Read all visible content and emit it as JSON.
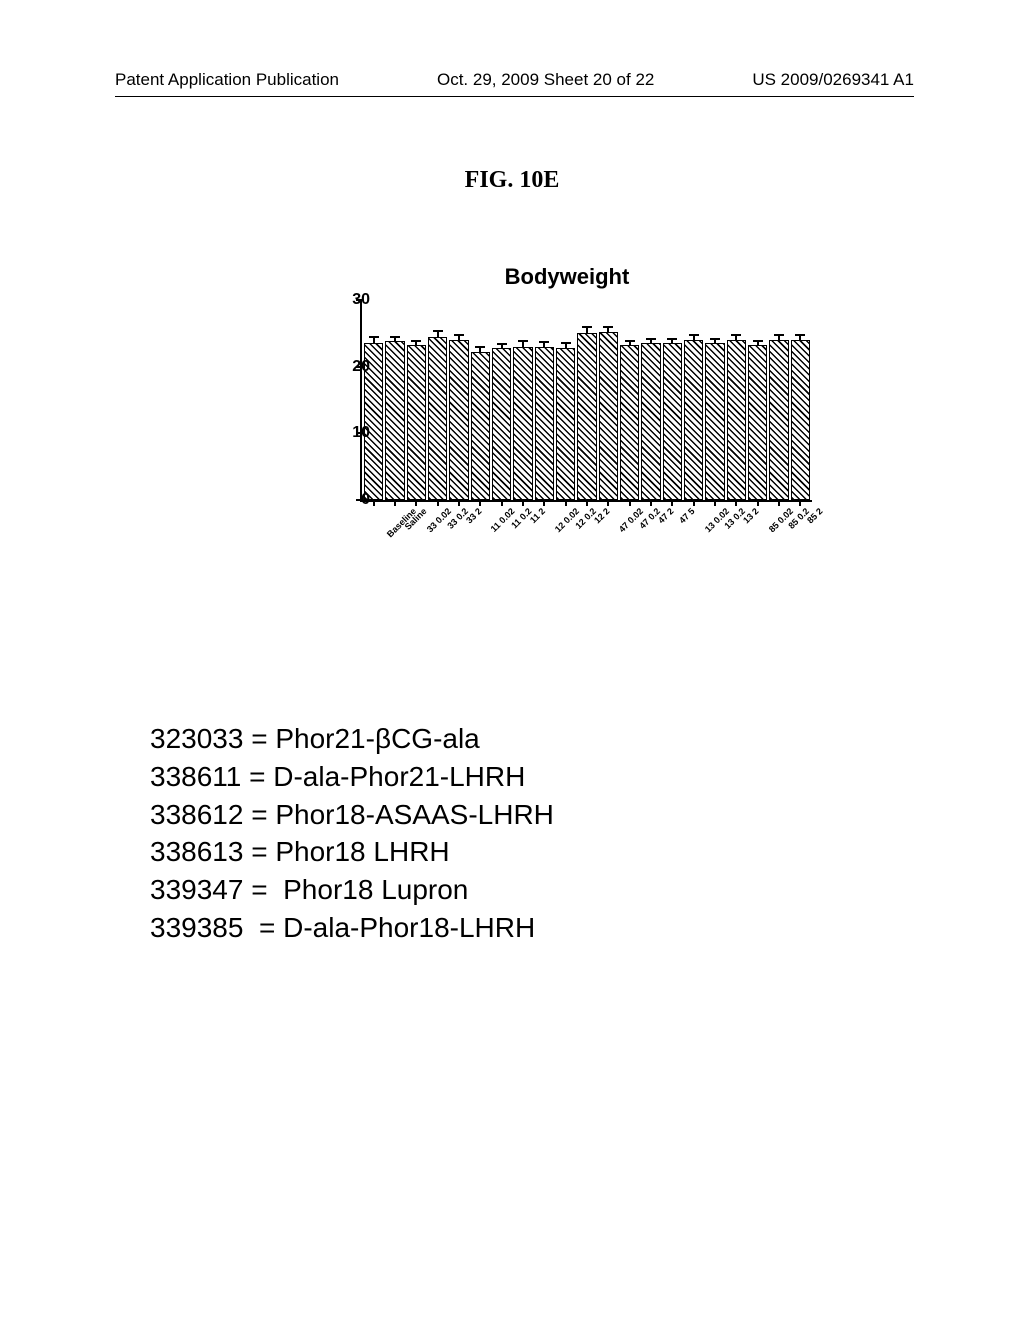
{
  "header": {
    "left": "Patent Application Publication",
    "center": "Oct. 29, 2009  Sheet 20 of 22",
    "right": "US 2009/0269341 A1"
  },
  "figure_label": "FIG. 10E",
  "chart": {
    "type": "bar",
    "title": "Bodyweight",
    "ylim": [
      0,
      30
    ],
    "ytick_step": 10,
    "bar_pattern": "diagonal-hatch",
    "background_color": "#ffffff",
    "axis_color": "#000000",
    "bars": [
      {
        "label": "Baseline",
        "value": 23.5,
        "err": 1.2
      },
      {
        "label": "Saline",
        "value": 23.8,
        "err": 1.0
      },
      {
        "label": "33 0.02",
        "value": 23.2,
        "err": 1.0
      },
      {
        "label": "33 0.2",
        "value": 24.5,
        "err": 1.2
      },
      {
        "label": "33 2",
        "value": 24.0,
        "err": 1.0
      },
      {
        "label": "11 0.02",
        "value": 22.2,
        "err": 1.0
      },
      {
        "label": "11 0.2",
        "value": 22.8,
        "err": 0.9
      },
      {
        "label": "11 2",
        "value": 23.0,
        "err": 1.1
      },
      {
        "label": "12 0.02",
        "value": 23.0,
        "err": 1.0
      },
      {
        "label": "12 0.2",
        "value": 22.8,
        "err": 1.0
      },
      {
        "label": "12 2",
        "value": 25.0,
        "err": 1.3
      },
      {
        "label": "47 0.02",
        "value": 25.2,
        "err": 1.1
      },
      {
        "label": "47 0.2",
        "value": 23.2,
        "err": 1.0
      },
      {
        "label": "47 2",
        "value": 23.5,
        "err": 1.0
      },
      {
        "label": "47 5",
        "value": 23.5,
        "err": 1.0
      },
      {
        "label": "13 0.02",
        "value": 24.0,
        "err": 1.0
      },
      {
        "label": "13 0.2",
        "value": 23.5,
        "err": 1.0
      },
      {
        "label": "13 2",
        "value": 24.0,
        "err": 1.0
      },
      {
        "label": "85 0.02",
        "value": 23.2,
        "err": 1.0
      },
      {
        "label": "85 0.2",
        "value": 24.0,
        "err": 1.0
      },
      {
        "label": "85 2",
        "value": 24.0,
        "err": 1.0
      }
    ]
  },
  "legend": [
    {
      "code": "323033",
      "desc": "Phor21-βCG-ala"
    },
    {
      "code": "338611",
      "desc": "D-ala-Phor21-LHRH"
    },
    {
      "code": "338612",
      "desc": "Phor18-ASAAS-LHRH"
    },
    {
      "code": "338613",
      "desc": "Phor18 LHRH"
    },
    {
      "code": "339347",
      "desc": " Phor18 Lupron"
    },
    {
      "code": "339385",
      "desc": "D-ala-Phor18-LHRH"
    }
  ]
}
